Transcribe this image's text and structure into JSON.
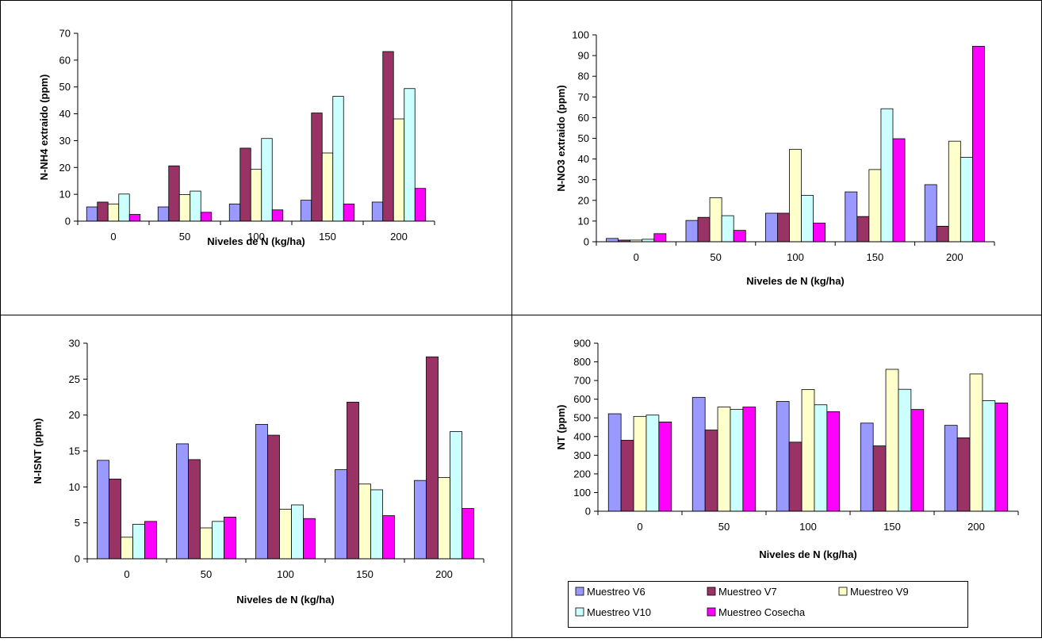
{
  "colors": {
    "Muestreo V6": "#9999ff",
    "Muestreo V7": "#993366",
    "Muestreo V9": "#ffffcc",
    "Muestreo V10": "#ccffff",
    "Muestreo Cosecha": "#ff00ff"
  },
  "legend": {
    "placement": "bottom-right panel",
    "items": [
      "Muestreo V6",
      "Muestreo V7",
      "Muestreo V9",
      "Muestreo V10",
      "Muestreo Cosecha"
    ]
  },
  "chart_data": [
    {
      "type": "bar",
      "title": "",
      "xlabel": "Niveles de N (kg/ha)",
      "ylabel": "N-NH4 extraido (ppm)",
      "ylim": [
        0,
        70
      ],
      "yticks": [
        0,
        10,
        20,
        30,
        40,
        50,
        60,
        70
      ],
      "grid": false,
      "categories": [
        "0",
        "50",
        "100",
        "150",
        "200"
      ],
      "series": [
        {
          "name": "Muestreo V6",
          "values": [
            5.3,
            5.3,
            6.4,
            7.8,
            7.1
          ]
        },
        {
          "name": "Muestreo V7",
          "values": [
            7.1,
            20.6,
            27.2,
            40.3,
            63.2
          ]
        },
        {
          "name": "Muestreo V9",
          "values": [
            6.4,
            9.9,
            19.3,
            25.4,
            38.1
          ]
        },
        {
          "name": "Muestreo V10",
          "values": [
            10.1,
            11.2,
            30.8,
            46.5,
            49.4
          ]
        },
        {
          "name": "Muestreo Cosecha",
          "values": [
            2.5,
            3.3,
            4.2,
            6.4,
            12.2
          ]
        }
      ]
    },
    {
      "type": "bar",
      "title": "",
      "xlabel": "Niveles de N (kg/ha)",
      "ylabel": "N-NO3 extraido (ppm)",
      "ylim": [
        0,
        100
      ],
      "yticks": [
        0,
        10,
        20,
        30,
        40,
        50,
        60,
        70,
        80,
        90,
        100
      ],
      "grid": false,
      "categories": [
        "0",
        "50",
        "100",
        "150",
        "200"
      ],
      "series": [
        {
          "name": "Muestreo V6",
          "values": [
            1.6,
            10.3,
            13.8,
            24.1,
            27.6
          ]
        },
        {
          "name": "Muestreo V7",
          "values": [
            0.8,
            11.8,
            13.8,
            12.2,
            7.5
          ]
        },
        {
          "name": "Muestreo V9",
          "values": [
            0.8,
            21.3,
            44.7,
            34.9,
            48.6
          ]
        },
        {
          "name": "Muestreo V10",
          "values": [
            1.2,
            12.6,
            22.4,
            64.3,
            40.8
          ]
        },
        {
          "name": "Muestreo Cosecha",
          "values": [
            3.9,
            5.5,
            9.0,
            49.8,
            94.5
          ]
        }
      ]
    },
    {
      "type": "bar",
      "title": "",
      "xlabel": "Niveles de N (kg/ha)",
      "ylabel": "N-ISNT (ppm)",
      "ylim": [
        0,
        30
      ],
      "yticks": [
        0,
        5,
        10,
        15,
        20,
        25,
        30
      ],
      "grid": false,
      "categories": [
        "0",
        "50",
        "100",
        "150",
        "200"
      ],
      "series": [
        {
          "name": "Muestreo V6",
          "values": [
            13.7,
            16.0,
            18.7,
            12.4,
            10.9
          ]
        },
        {
          "name": "Muestreo V7",
          "values": [
            11.1,
            13.8,
            17.2,
            21.8,
            28.1
          ]
        },
        {
          "name": "Muestreo V9",
          "values": [
            3.0,
            4.3,
            6.9,
            10.4,
            11.3
          ]
        },
        {
          "name": "Muestreo V10",
          "values": [
            4.8,
            5.2,
            7.5,
            9.6,
            17.7
          ]
        },
        {
          "name": "Muestreo Cosecha",
          "values": [
            5.2,
            5.8,
            5.6,
            6.0,
            7.0
          ]
        }
      ]
    },
    {
      "type": "bar",
      "title": "",
      "xlabel": "Niveles de N (kg/ha)",
      "ylabel": "NT (ppm)",
      "ylim": [
        0,
        900
      ],
      "yticks": [
        0,
        100,
        200,
        300,
        400,
        500,
        600,
        700,
        800,
        900
      ],
      "grid": false,
      "categories": [
        "0",
        "50",
        "100",
        "150",
        "200"
      ],
      "series": [
        {
          "name": "Muestreo V6",
          "values": [
            522,
            610,
            588,
            472,
            460
          ]
        },
        {
          "name": "Muestreo V7",
          "values": [
            380,
            435,
            370,
            350,
            393
          ]
        },
        {
          "name": "Muestreo V9",
          "values": [
            508,
            558,
            652,
            760,
            735
          ]
        },
        {
          "name": "Muestreo V10",
          "values": [
            515,
            545,
            570,
            653,
            592
          ]
        },
        {
          "name": "Muestreo Cosecha",
          "values": [
            478,
            558,
            533,
            545,
            580
          ]
        }
      ]
    }
  ]
}
